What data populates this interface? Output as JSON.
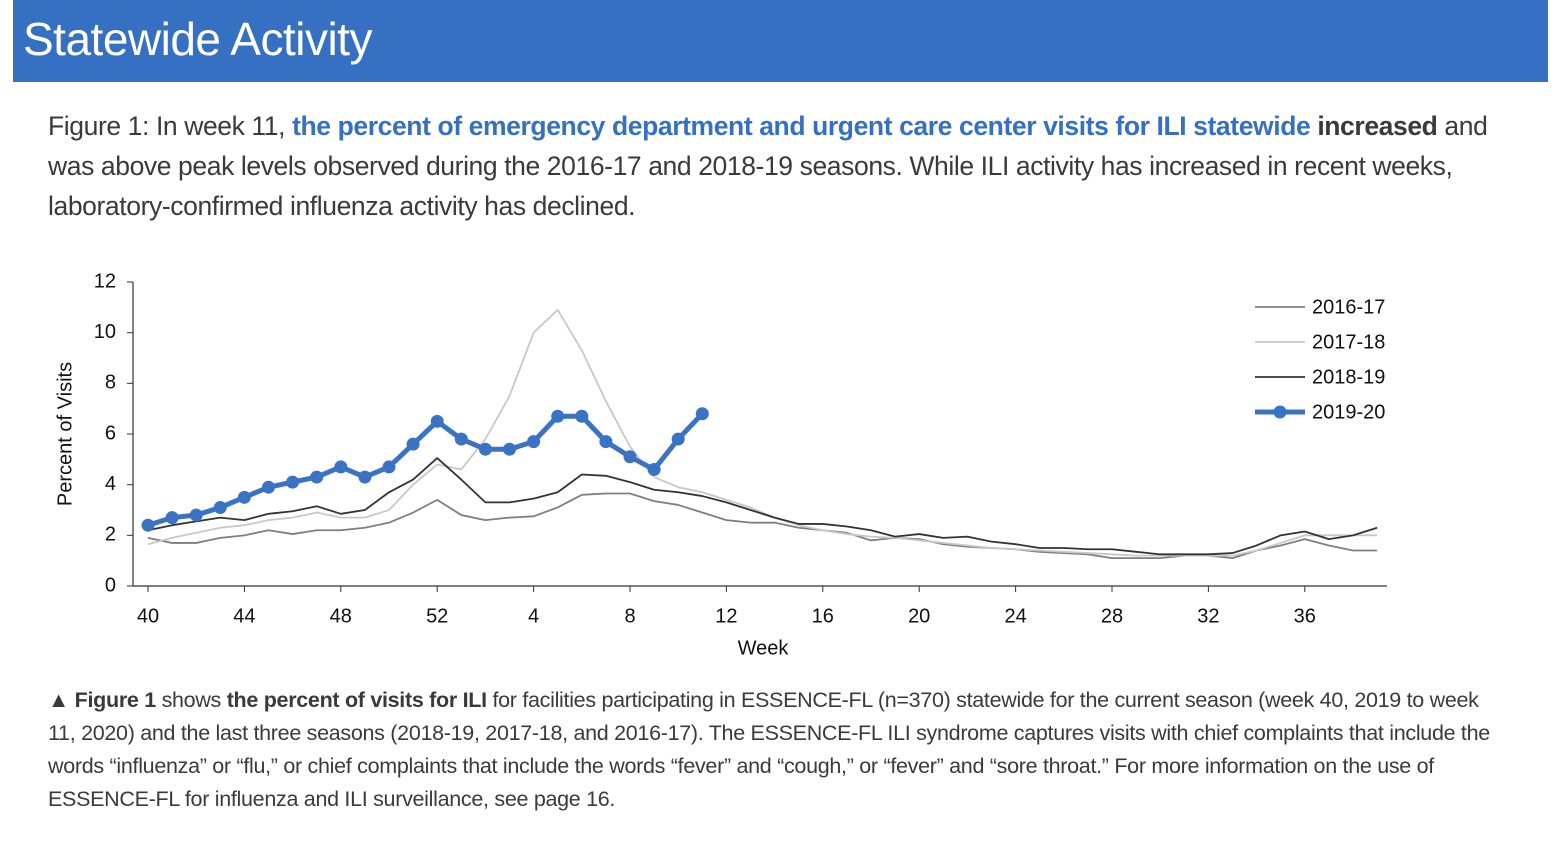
{
  "header": {
    "title": "Statewide Activity"
  },
  "figure_text": [
    {
      "text": "Figure 1: In week 11, ",
      "style": "normal"
    },
    {
      "text": "the percent of emergency department and urgent care center visits for ILI statewide",
      "style": "blue-bold"
    },
    {
      "text": " ",
      "style": "normal"
    },
    {
      "text": "increased",
      "style": "bold"
    },
    {
      "text": " and was above peak levels observed during the 2016-17 and 2018-19 seasons. While ILI activity has increased in recent weeks, laboratory-confirmed influenza activity has declined.",
      "style": "normal"
    }
  ],
  "chart_data": {
    "type": "line",
    "x_label": "Week",
    "y_label": "Percent of Visits",
    "categories": [
      40,
      null,
      null,
      null,
      44,
      null,
      null,
      null,
      48,
      null,
      null,
      null,
      52,
      null,
      null,
      null,
      4,
      null,
      null,
      null,
      8,
      null,
      null,
      null,
      12,
      null,
      null,
      null,
      16,
      null,
      null,
      null,
      20,
      null,
      null,
      null,
      24,
      null,
      null,
      null,
      28,
      null,
      null,
      null,
      32,
      null,
      null,
      null,
      36,
      null,
      null,
      null
    ],
    "ylim": [
      0,
      12
    ],
    "yticks": [
      0,
      2,
      4,
      6,
      8,
      10,
      12
    ],
    "grid": false,
    "legend": "upper right",
    "series": [
      {
        "name": "2016-17",
        "color": "#7f7f7f",
        "values": [
          1.9,
          1.7,
          1.7,
          1.9,
          2.0,
          2.2,
          2.05,
          2.2,
          2.2,
          2.3,
          2.5,
          2.9,
          3.4,
          2.8,
          2.6,
          2.7,
          2.75,
          3.1,
          3.6,
          3.65,
          3.65,
          3.35,
          3.2,
          2.9,
          2.6,
          2.5,
          2.5,
          2.3,
          2.2,
          2.1,
          1.8,
          1.9,
          1.85,
          1.65,
          1.55,
          1.5,
          1.45,
          1.35,
          1.3,
          1.25,
          1.1,
          1.1,
          1.1,
          1.2,
          1.2,
          1.1,
          1.4,
          1.6,
          1.85,
          1.6,
          1.4,
          1.4
        ]
      },
      {
        "name": "2017-18",
        "color": "#c8c8c8",
        "values": [
          1.65,
          1.9,
          2.1,
          2.3,
          2.4,
          2.6,
          2.7,
          2.9,
          2.7,
          2.7,
          3.0,
          4.0,
          4.8,
          4.6,
          5.8,
          7.5,
          10.0,
          10.9,
          9.3,
          7.3,
          5.5,
          4.3,
          3.9,
          3.7,
          3.4,
          3.1,
          2.7,
          2.4,
          2.2,
          2.05,
          1.95,
          1.9,
          1.8,
          1.7,
          1.6,
          1.5,
          1.45,
          1.4,
          1.35,
          1.3,
          1.25,
          1.2,
          1.2,
          1.2,
          1.2,
          1.2,
          1.4,
          1.7,
          2.0,
          2.0,
          2.0,
          2.0
        ]
      },
      {
        "name": "2018-19",
        "color": "#333333",
        "values": [
          2.2,
          2.4,
          2.55,
          2.7,
          2.6,
          2.85,
          2.95,
          3.15,
          2.85,
          3.0,
          3.7,
          4.2,
          5.05,
          4.2,
          3.3,
          3.3,
          3.45,
          3.7,
          4.4,
          4.35,
          4.1,
          3.8,
          3.7,
          3.55,
          3.3,
          3.0,
          2.7,
          2.45,
          2.45,
          2.35,
          2.2,
          1.95,
          2.05,
          1.9,
          1.95,
          1.75,
          1.65,
          1.5,
          1.5,
          1.45,
          1.45,
          1.35,
          1.25,
          1.25,
          1.25,
          1.3,
          1.6,
          2.0,
          2.15,
          1.85,
          2.0,
          2.3
        ]
      },
      {
        "name": "2019-20",
        "color": "#3a72c4",
        "markers": true,
        "values": [
          2.4,
          2.7,
          2.8,
          3.1,
          3.5,
          3.9,
          4.1,
          4.3,
          4.7,
          4.3,
          4.7,
          5.6,
          6.5,
          5.8,
          5.4,
          5.4,
          5.7,
          6.7,
          6.7,
          5.7,
          5.1,
          4.6,
          5.8,
          6.8,
          null,
          null,
          null,
          null,
          null,
          null,
          null,
          null,
          null,
          null,
          null,
          null,
          null,
          null,
          null,
          null,
          null,
          null,
          null,
          null,
          null,
          null,
          null,
          null,
          null,
          null,
          null,
          null
        ]
      }
    ]
  },
  "caption": [
    {
      "text": "▲ Figure 1",
      "style": "bold"
    },
    {
      "text": " shows ",
      "style": "normal"
    },
    {
      "text": "the percent of visits for ILI",
      "style": "bold"
    },
    {
      "text": " for facilities participating in ESSENCE-FL (n=370) statewide for the current season (week 40, 2019 to week 11, 2020) and the last three seasons (2018-19, 2017-18, and 2016-17). The ESSENCE-FL ILI syndrome captures visits with chief complaints that include the words “influenza” or “flu,” or chief complaints that include the words “fever” and “cough,” or “fever” and “sore throat.” For more information on the use of ESSENCE-FL for influenza and ILI surveillance, see page 16.",
      "style": "normal"
    }
  ]
}
